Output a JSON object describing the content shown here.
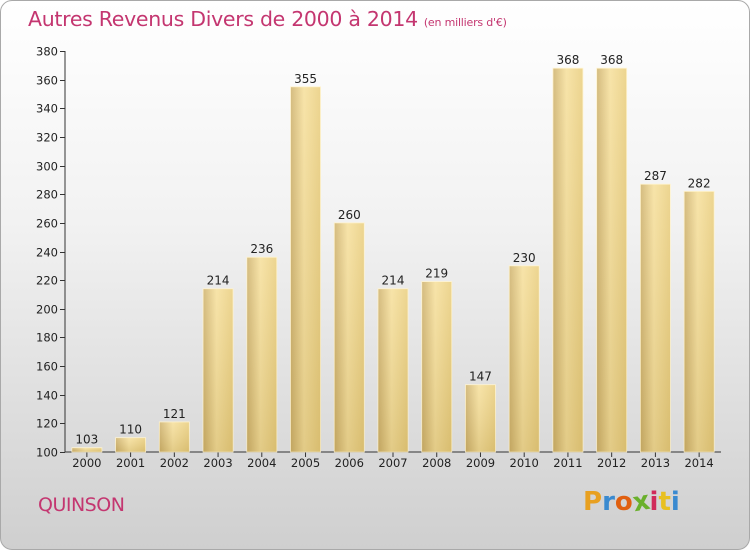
{
  "header": {
    "title": "Autres Revenus Divers de 2000 à 2014",
    "subtitle": "(en milliers d'€)"
  },
  "footer": {
    "commune": "QUINSON",
    "logo_letters": [
      "P",
      "r",
      "o",
      "x",
      "i",
      "t",
      "i"
    ],
    "logo_colors": [
      "#e8a020",
      "#3a8ad0",
      "#e06010",
      "#6ab02c",
      "#d02a5a",
      "#e8c020",
      "#3a8ad0"
    ]
  },
  "colors": {
    "title": "#c43670",
    "bar_light": "#f8e3a0",
    "bar_dark": "#c9ac62"
  },
  "chart_data": {
    "type": "bar",
    "title": "Autres Revenus Divers de 2000 à 2014",
    "subtitle": "(en milliers d'€)",
    "categories": [
      "2000",
      "2001",
      "2002",
      "2003",
      "2004",
      "2005",
      "2006",
      "2007",
      "2008",
      "2009",
      "2010",
      "2011",
      "2012",
      "2013",
      "2014"
    ],
    "values": [
      103,
      110,
      121,
      214,
      236,
      355,
      260,
      214,
      219,
      147,
      230,
      368,
      368,
      287,
      282
    ],
    "ylim": [
      100,
      380
    ],
    "yticks": [
      100,
      120,
      140,
      160,
      180,
      200,
      220,
      240,
      260,
      280,
      300,
      320,
      340,
      360,
      380
    ],
    "grid": false
  }
}
